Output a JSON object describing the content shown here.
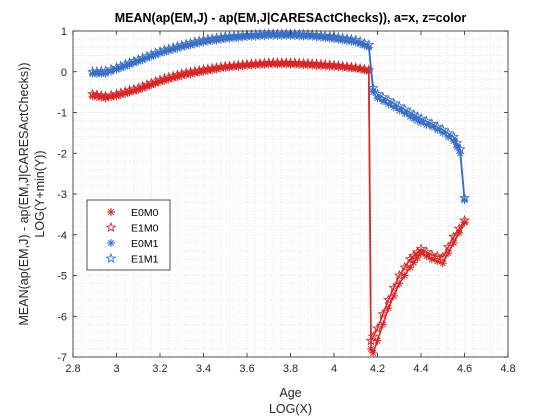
{
  "chart_data": {
    "type": "line",
    "title": "MEAN(ap(EM,J) - ap(EM,J|CARESActChecks)), a=x, z=color",
    "xlabel": "Age",
    "xlabel2": "LOG(X)",
    "ylabel": "MEAN(ap(EM,J) - ap(EM,J|CARESActChecks))",
    "ylabel2": "LOG(Y+min(Y))",
    "xlim": [
      2.8,
      4.8
    ],
    "ylim": [
      -7,
      1
    ],
    "xticks": [
      "2.8",
      "3",
      "3.2",
      "3.4",
      "3.6",
      "3.8",
      "4",
      "4.2",
      "4.4",
      "4.6",
      "4.8"
    ],
    "yticks": [
      "-7",
      "-6",
      "-5",
      "-4",
      "-3",
      "-2",
      "-1",
      "0",
      "1"
    ],
    "grid": "minor-dotted",
    "legend_position": "left-middle",
    "series": [
      {
        "name": "E0M0",
        "color": "#d62728",
        "marker": "asterisk",
        "x": [
          2.89,
          2.95,
          3.0,
          3.1,
          3.2,
          3.3,
          3.4,
          3.5,
          3.6,
          3.7,
          3.8,
          3.9,
          4.0,
          4.1,
          4.16,
          4.17,
          4.18,
          4.2,
          4.25,
          4.3,
          4.35,
          4.4,
          4.45,
          4.5,
          4.55,
          4.6
        ],
        "y": [
          -0.6,
          -0.65,
          -0.6,
          -0.45,
          -0.25,
          -0.1,
          0.0,
          0.1,
          0.15,
          0.18,
          0.18,
          0.15,
          0.12,
          0.08,
          0.02,
          -6.8,
          -6.9,
          -6.6,
          -5.8,
          -5.2,
          -4.8,
          -4.45,
          -4.6,
          -4.7,
          -4.2,
          -3.7
        ]
      },
      {
        "name": "E1M0",
        "color": "#d62728",
        "marker": "star",
        "x": [
          2.89,
          2.95,
          3.0,
          3.1,
          3.2,
          3.3,
          3.4,
          3.5,
          3.6,
          3.7,
          3.8,
          3.9,
          4.0,
          4.1,
          4.16,
          4.17,
          4.18,
          4.2,
          4.25,
          4.3,
          4.35,
          4.4,
          4.45,
          4.5,
          4.55,
          4.6
        ],
        "y": [
          -0.55,
          -0.6,
          -0.55,
          -0.4,
          -0.2,
          -0.05,
          0.05,
          0.13,
          0.18,
          0.22,
          0.22,
          0.2,
          0.16,
          0.1,
          0.04,
          -6.6,
          -6.5,
          -6.3,
          -5.6,
          -5.0,
          -4.6,
          -4.35,
          -4.5,
          -4.55,
          -4.05,
          -3.65
        ]
      },
      {
        "name": "E0M1",
        "color": "#3a6fc4",
        "marker": "asterisk",
        "x": [
          2.89,
          2.95,
          3.0,
          3.1,
          3.2,
          3.3,
          3.4,
          3.5,
          3.6,
          3.7,
          3.8,
          3.9,
          4.0,
          4.1,
          4.16,
          4.18,
          4.2,
          4.25,
          4.3,
          4.35,
          4.4,
          4.45,
          4.5,
          4.55,
          4.58,
          4.6
        ],
        "y": [
          -0.05,
          -0.05,
          0.05,
          0.25,
          0.45,
          0.6,
          0.72,
          0.8,
          0.85,
          0.88,
          0.88,
          0.86,
          0.8,
          0.72,
          0.6,
          -0.5,
          -0.65,
          -0.8,
          -0.95,
          -1.1,
          -1.25,
          -1.35,
          -1.5,
          -1.7,
          -2.0,
          -3.15
        ]
      },
      {
        "name": "E1M1",
        "color": "#3a6fc4",
        "marker": "star",
        "x": [
          2.89,
          2.95,
          3.0,
          3.1,
          3.2,
          3.3,
          3.4,
          3.5,
          3.6,
          3.7,
          3.8,
          3.9,
          4.0,
          4.1,
          4.16,
          4.18,
          4.2,
          4.25,
          4.3,
          4.35,
          4.4,
          4.45,
          4.5,
          4.55,
          4.58,
          4.6
        ],
        "y": [
          0.0,
          0.02,
          0.1,
          0.3,
          0.5,
          0.65,
          0.78,
          0.86,
          0.9,
          0.93,
          0.93,
          0.91,
          0.86,
          0.78,
          0.66,
          -0.4,
          -0.55,
          -0.7,
          -0.85,
          -1.0,
          -1.15,
          -1.28,
          -1.42,
          -1.6,
          -1.9,
          -3.1
        ]
      }
    ]
  }
}
